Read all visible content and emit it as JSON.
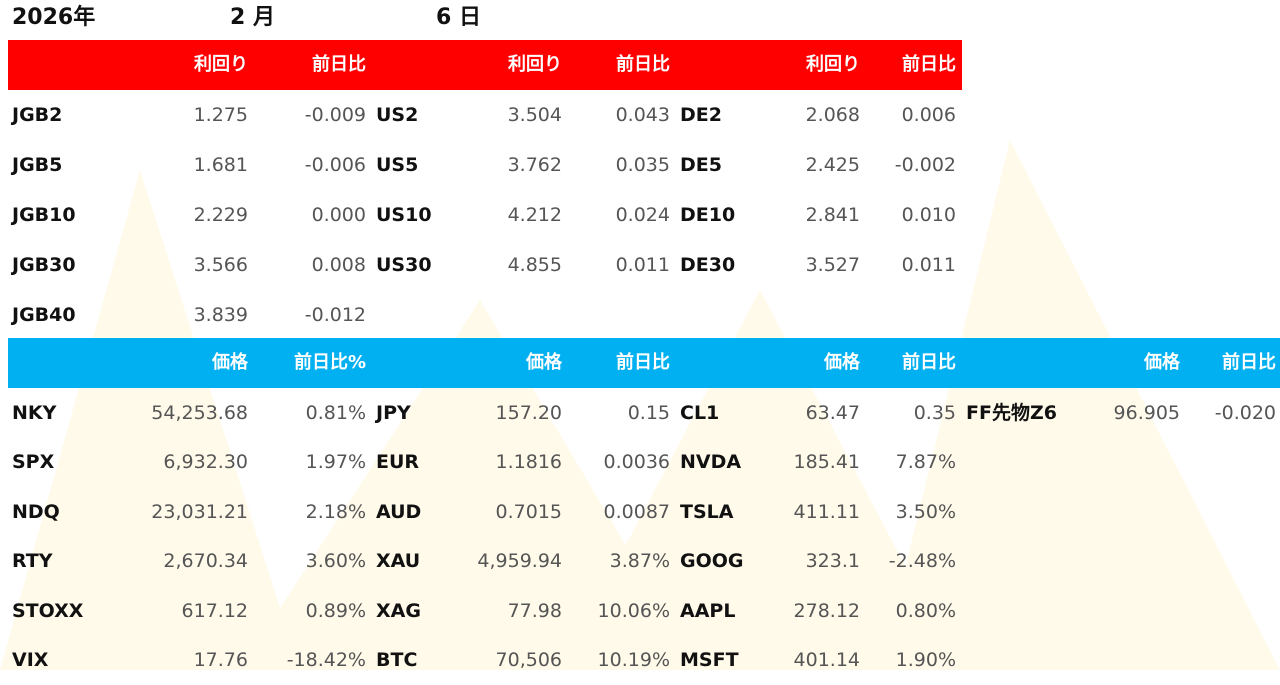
{
  "date": {
    "year": "2026年",
    "month": "2 月",
    "day": "6 日"
  },
  "bond_header": [
    "利回り",
    "前日比",
    "利回り",
    "前日比",
    "利回り",
    "前日比"
  ],
  "bond_rows": [
    {
      "a": "JGB2",
      "a_val": "1.275",
      "a_chg": "-0.009",
      "b": "US2",
      "b_val": "3.504",
      "b_chg": "0.043",
      "c": "DE2",
      "c_val": "2.068",
      "c_chg": "0.006"
    },
    {
      "a": "JGB5",
      "a_val": "1.681",
      "a_chg": "-0.006",
      "b": "US5",
      "b_val": "3.762",
      "b_chg": "0.035",
      "c": "DE5",
      "c_val": "2.425",
      "c_chg": "-0.002"
    },
    {
      "a": "JGB10",
      "a_val": "2.229",
      "a_chg": "0.000",
      "b": "US10",
      "b_val": "4.212",
      "b_chg": "0.024",
      "c": "DE10",
      "c_val": "2.841",
      "c_chg": "0.010"
    },
    {
      "a": "JGB30",
      "a_val": "3.566",
      "a_chg": "0.008",
      "b": "US30",
      "b_val": "4.855",
      "b_chg": "0.011",
      "c": "DE30",
      "c_val": "3.527",
      "c_chg": "0.011"
    },
    {
      "a": "JGB40",
      "a_val": "3.839",
      "a_chg": "-0.012",
      "b": "",
      "b_val": "",
      "b_chg": "",
      "c": "",
      "c_val": "",
      "c_chg": ""
    }
  ],
  "market_header": [
    "価格",
    "前日比%",
    "価格",
    "前日比",
    "価格",
    "前日比",
    "価格",
    "前日比"
  ],
  "market_rows": [
    {
      "a": "NKY",
      "a_val": "54,253.68",
      "a_chg": "0.81%",
      "b": "JPY",
      "b_val": "157.20",
      "b_chg": "0.15",
      "c": "CL1",
      "c_val": "63.47",
      "c_chg": "0.35",
      "d": "FF先物Z6",
      "d_val": "96.905",
      "d_chg": "-0.020"
    },
    {
      "a": "SPX",
      "a_val": "6,932.30",
      "a_chg": "1.97%",
      "b": "EUR",
      "b_val": "1.1816",
      "b_chg": "0.0036",
      "c": "NVDA",
      "c_val": "185.41",
      "c_chg": "7.87%",
      "d": "",
      "d_val": "",
      "d_chg": ""
    },
    {
      "a": "NDQ",
      "a_val": "23,031.21",
      "a_chg": "2.18%",
      "b": "AUD",
      "b_val": "0.7015",
      "b_chg": "0.0087",
      "c": "TSLA",
      "c_val": "411.11",
      "c_chg": "3.50%",
      "d": "",
      "d_val": "",
      "d_chg": ""
    },
    {
      "a": "RTY",
      "a_val": "2,670.34",
      "a_chg": "3.60%",
      "b": "XAU",
      "b_val": "4,959.94",
      "b_chg": "3.87%",
      "c": "GOOG",
      "c_val": "323.1",
      "c_chg": "-2.48%",
      "d": "",
      "d_val": "",
      "d_chg": ""
    },
    {
      "a": "STOXX",
      "a_val": "617.12",
      "a_chg": "0.89%",
      "b": "XAG",
      "b_val": "77.98",
      "b_chg": "10.06%",
      "c": "AAPL",
      "c_val": "278.12",
      "c_chg": "0.80%",
      "d": "",
      "d_val": "",
      "d_chg": ""
    },
    {
      "a": "VIX",
      "a_val": "17.76",
      "a_chg": "-18.42%",
      "b": "BTC",
      "b_val": "70,506",
      "b_chg": "10.19%",
      "c": "MSFT",
      "c_val": "401.14",
      "c_chg": "1.90%",
      "d": "",
      "d_val": "",
      "d_chg": ""
    }
  ],
  "colors": {
    "bond_header_bg": "#ff0000",
    "market_header_bg": "#00b0f0",
    "header_text": "#ffffff",
    "watermark": "#fff8e0"
  }
}
